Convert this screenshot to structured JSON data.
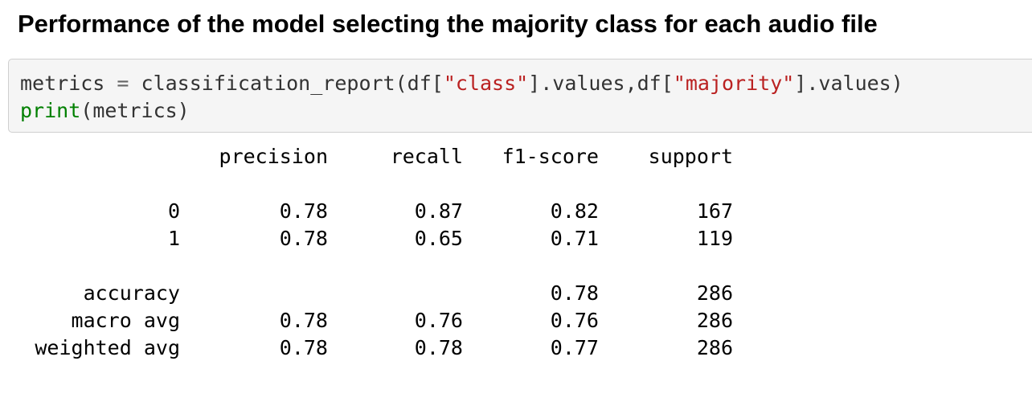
{
  "title": "Performance of the model selecting the majority class for each audio file",
  "code": {
    "line1": {
      "p1": "metrics",
      "p2": " = ",
      "p3": "classification_report(df[",
      "p4": "\"class\"",
      "p5": "].values,df[",
      "p6": "\"majority\"",
      "p7": "].values)"
    },
    "line2": {
      "p1": "print",
      "p2": "(metrics)"
    }
  },
  "report": {
    "headers": {
      "precision": "precision",
      "recall": "recall",
      "f1": "f1-score",
      "support": "support"
    },
    "rows": {
      "class0": {
        "label": "0",
        "precision": "0.78",
        "recall": "0.87",
        "f1": "0.82",
        "support": "167"
      },
      "class1": {
        "label": "1",
        "precision": "0.78",
        "recall": "0.65",
        "f1": "0.71",
        "support": "119"
      },
      "accuracy": {
        "label": "accuracy",
        "precision": "",
        "recall": "",
        "f1": "0.78",
        "support": "286"
      },
      "macro": {
        "label": "macro avg",
        "precision": "0.78",
        "recall": "0.76",
        "f1": "0.76",
        "support": "286"
      },
      "weighted": {
        "label": "weighted avg",
        "precision": "0.78",
        "recall": "0.78",
        "f1": "0.77",
        "support": "286"
      }
    }
  }
}
